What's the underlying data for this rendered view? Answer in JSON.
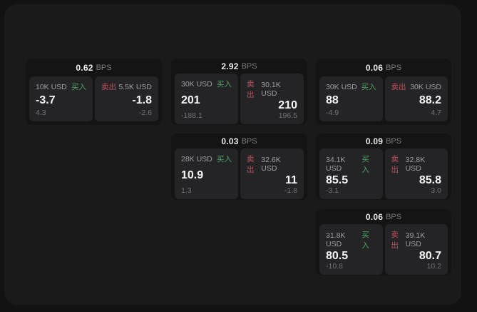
{
  "theme": {
    "outer_bg": "#121213",
    "panel_bg": "#1a1a1b",
    "card_bg": "#141415",
    "tile_bg": "#242427",
    "buy_color": "#4ba35f",
    "sell_color": "#c3505a"
  },
  "bps_unit_label": "BPS",
  "cards": [
    {
      "bps_value": "0.62",
      "buy": {
        "size": "10K USD",
        "label": "买入",
        "price": "-3.7",
        "change": "4.3"
      },
      "sell": {
        "label": "卖出",
        "size": "5.5K USD",
        "price": "-1.8",
        "change": "-2.6"
      }
    },
    {
      "bps_value": "2.92",
      "buy": {
        "size": "30K USD",
        "label": "买入",
        "price": "201",
        "change": "-188.1"
      },
      "sell": {
        "label": "卖出",
        "size": "30.1K USD",
        "price": "210",
        "change": "196.5"
      }
    },
    {
      "bps_value": "0.06",
      "buy": {
        "size": "30K USD",
        "label": "买入",
        "price": "88",
        "change": "-4.9"
      },
      "sell": {
        "label": "卖出",
        "size": "30K USD",
        "price": "88.2",
        "change": "4.7"
      }
    },
    {
      "bps_value": "0.03",
      "buy": {
        "size": "28K USD",
        "label": "买入",
        "price": "10.9",
        "change": "1.3"
      },
      "sell": {
        "label": "卖出",
        "size": "32.6K USD",
        "price": "11",
        "change": "-1.8"
      }
    },
    {
      "bps_value": "0.09",
      "buy": {
        "size": "34.1K USD",
        "label": "买入",
        "price": "85.5",
        "change": "-3.1"
      },
      "sell": {
        "label": "卖出",
        "size": "32.8K USD",
        "price": "85.8",
        "change": "3.0"
      }
    },
    {
      "bps_value": "0.06",
      "buy": {
        "size": "31.8K USD",
        "label": "买入",
        "price": "80.5",
        "change": "-10.8"
      },
      "sell": {
        "label": "卖出",
        "size": "39.1K USD",
        "price": "80.7",
        "change": "10.2"
      }
    }
  ]
}
